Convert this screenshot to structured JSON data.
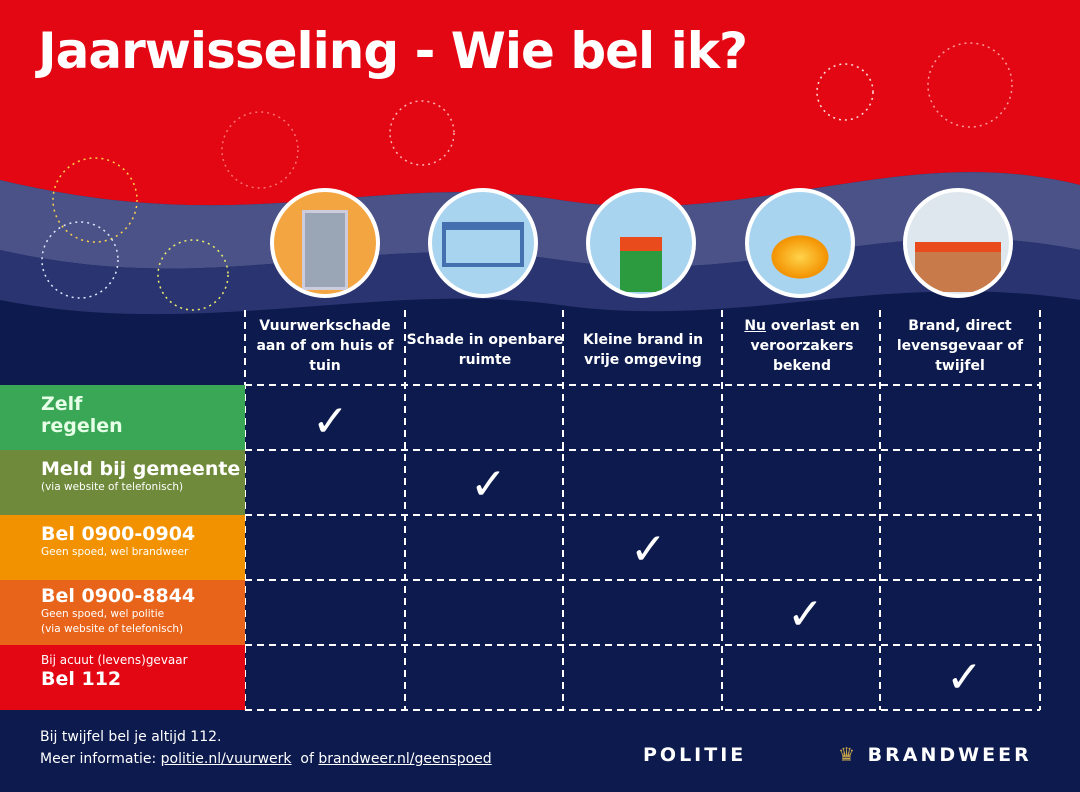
{
  "title": "Jaarwisseling - Wie bel ik?",
  "columns": [
    {
      "label": "Vuurwerkschade aan of om huis of tuin",
      "icon": "broken-window-icon"
    },
    {
      "label": "Schade in openbare ruimte",
      "icon": "bus-shelter-icon"
    },
    {
      "label": "Kleine brand in vrije omgeving",
      "icon": "burning-bin-icon"
    },
    {
      "label_underlined": "Nu",
      "label": " overlast en veroorzakers bekend",
      "icon": "explosion-icon"
    },
    {
      "label": "Brand, direct levensgevaar of twijfel",
      "icon": "house-fire-icon"
    }
  ],
  "rows": [
    {
      "big": "Zelf regelen",
      "small": "",
      "color": "#3aa757",
      "check_col": 0
    },
    {
      "big": "Meld bij gemeente",
      "small": "(via website of telefonisch)",
      "color": "#6f8a3a",
      "check_col": 1
    },
    {
      "big": "Bel 0900-0904",
      "small": "Geen spoed, wel brandweer",
      "color": "#f39200",
      "check_col": 2
    },
    {
      "big": "Bel 0900-8844",
      "small": "Geen spoed, wel politie",
      "small2": "(via website of telefonisch)",
      "color": "#e8641b",
      "check_col": 3
    },
    {
      "pre": "Bij acuut (levens)gevaar",
      "big": "Bel 112",
      "color": "#e30613",
      "check_col": 4
    }
  ],
  "check": "✓",
  "footer": {
    "line1": "Bij twijfel bel je altijd 112.",
    "prefix": "Meer informatie: ",
    "link1": "politie.nl/vuurwerk",
    "mid": "  of ",
    "link2": "brandweer.nl/geenspoed"
  },
  "logos": {
    "politie": "POLITIE",
    "brandweer": "BRANDWEER"
  },
  "colors": {
    "red": "#e30613",
    "navy": "#0c1a4d"
  }
}
